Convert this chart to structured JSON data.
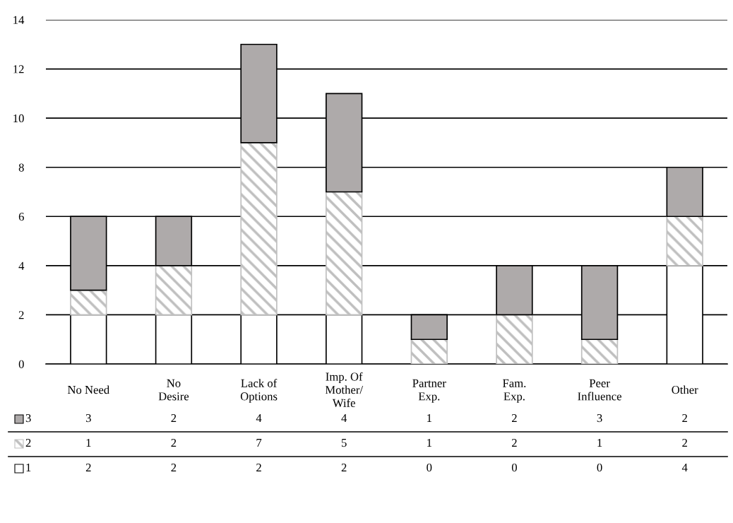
{
  "chart_data": {
    "type": "bar",
    "stacked": true,
    "categories": [
      "No Need",
      "No\nDesire",
      "Lack of\nOptions",
      "Imp. Of\nMother/\nWife",
      "Partner\nExp.",
      "Fam.\nExp.",
      "Peer\nInfluence",
      "Other"
    ],
    "series": [
      {
        "name": "1",
        "color": "#ffffff",
        "values": [
          2,
          2,
          2,
          2,
          0,
          0,
          0,
          4
        ]
      },
      {
        "name": "2",
        "color": "#bfbfbf",
        "values": [
          1,
          2,
          7,
          5,
          1,
          2,
          1,
          2
        ]
      },
      {
        "name": "3",
        "color": "#aeaaaa",
        "values": [
          3,
          2,
          4,
          4,
          1,
          2,
          3,
          2
        ]
      }
    ],
    "ylim": [
      0,
      14
    ],
    "yticks": [
      0,
      2,
      4,
      6,
      8,
      10,
      12,
      14
    ],
    "grid": "y",
    "data_labels": true,
    "legend": "bottom left"
  }
}
